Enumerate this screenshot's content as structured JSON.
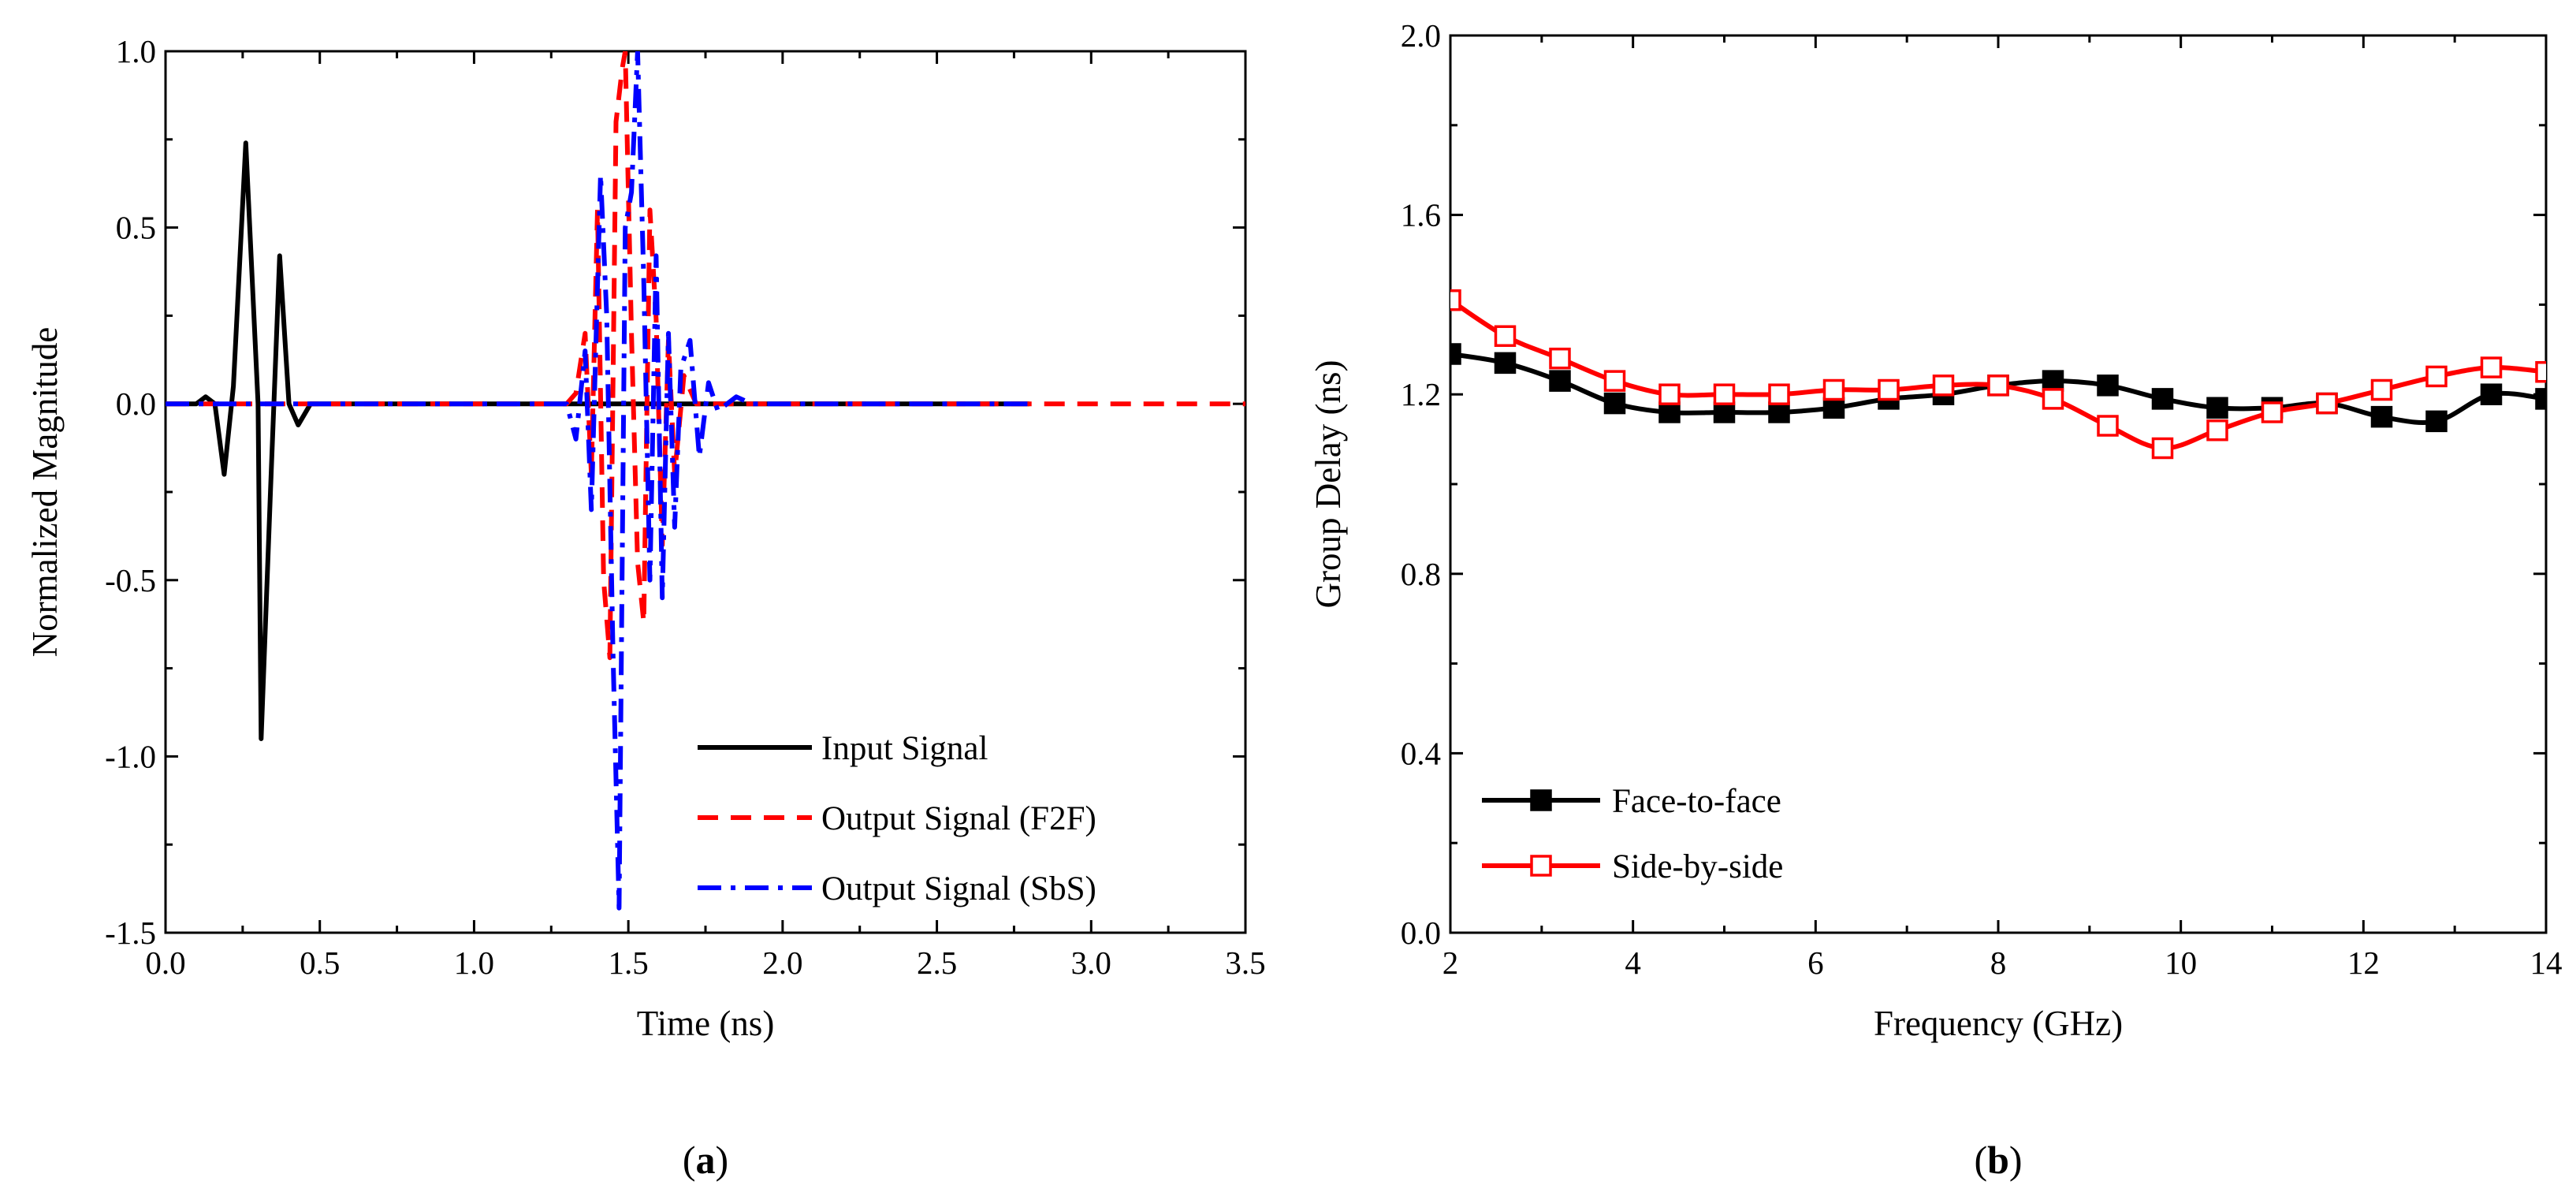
{
  "chart_data": [
    {
      "panel": "(a)",
      "type": "line",
      "xlabel": "Time (ns)",
      "ylabel": "Normalized Magnitude",
      "xlim": [
        0.0,
        3.5
      ],
      "ylim": [
        -1.5,
        1.0
      ],
      "xticks": [
        "0.0",
        "0.5",
        "1.0",
        "1.5",
        "2.0",
        "2.5",
        "3.0",
        "3.5"
      ],
      "yticks": [
        "-1.5",
        "-1.0",
        "-0.5",
        "0.0",
        "0.5",
        "1.0"
      ],
      "legend_position": "lower-right",
      "grid": false,
      "series": [
        {
          "name": "Input Signal",
          "color": "#000000",
          "style": "solid",
          "points": [
            [
              0.0,
              0.0
            ],
            [
              0.1,
              0.0
            ],
            [
              0.13,
              0.02
            ],
            [
              0.16,
              0.0
            ],
            [
              0.19,
              -0.2
            ],
            [
              0.22,
              0.05
            ],
            [
              0.26,
              0.74
            ],
            [
              0.3,
              0.0
            ],
            [
              0.31,
              -0.95
            ],
            [
              0.34,
              -0.25
            ],
            [
              0.37,
              0.42
            ],
            [
              0.4,
              0.0
            ],
            [
              0.43,
              -0.06
            ],
            [
              0.47,
              0.0
            ],
            [
              1.0,
              0.0
            ],
            [
              2.0,
              0.0
            ],
            [
              2.8,
              0.0
            ]
          ]
        },
        {
          "name": "Output Signal (F2F)",
          "color": "#ff0000",
          "style": "dashed",
          "points": [
            [
              0.0,
              0.0
            ],
            [
              1.3,
              0.0
            ],
            [
              1.33,
              0.03
            ],
            [
              1.36,
              0.2
            ],
            [
              1.38,
              -0.2
            ],
            [
              1.4,
              0.55
            ],
            [
              1.42,
              -0.5
            ],
            [
              1.44,
              -0.72
            ],
            [
              1.46,
              0.8
            ],
            [
              1.48,
              0.95
            ],
            [
              1.49,
              1.0
            ],
            [
              1.51,
              0.2
            ],
            [
              1.53,
              -0.45
            ],
            [
              1.55,
              -0.62
            ],
            [
              1.57,
              0.55
            ],
            [
              1.59,
              0.24
            ],
            [
              1.61,
              -0.4
            ],
            [
              1.63,
              0.18
            ],
            [
              1.65,
              -0.2
            ],
            [
              1.68,
              0.08
            ],
            [
              1.72,
              0.0
            ],
            [
              3.5,
              0.0
            ]
          ]
        },
        {
          "name": "Output Signal (SbS)",
          "color": "#0000ff",
          "style": "dashdot",
          "points": [
            [
              0.0,
              0.0
            ],
            [
              1.3,
              0.0
            ],
            [
              1.33,
              -0.1
            ],
            [
              1.36,
              0.15
            ],
            [
              1.38,
              -0.3
            ],
            [
              1.41,
              0.65
            ],
            [
              1.43,
              0.25
            ],
            [
              1.45,
              -0.7
            ],
            [
              1.47,
              -1.43
            ],
            [
              1.49,
              0.5
            ],
            [
              1.51,
              0.6
            ],
            [
              1.53,
              1.0
            ],
            [
              1.55,
              0.35
            ],
            [
              1.57,
              -0.5
            ],
            [
              1.59,
              0.42
            ],
            [
              1.61,
              -0.55
            ],
            [
              1.63,
              0.2
            ],
            [
              1.65,
              -0.35
            ],
            [
              1.67,
              0.1
            ],
            [
              1.7,
              0.18
            ],
            [
              1.73,
              -0.15
            ],
            [
              1.76,
              0.06
            ],
            [
              1.79,
              -0.02
            ],
            [
              1.85,
              0.02
            ],
            [
              1.9,
              0.0
            ],
            [
              2.0,
              0.0
            ],
            [
              2.8,
              0.0
            ]
          ]
        }
      ]
    },
    {
      "panel": "(b)",
      "type": "line",
      "xlabel": "Frequency (GHz)",
      "ylabel": "Group Delay (ns)",
      "xlim": [
        2,
        14
      ],
      "ylim": [
        0.0,
        2.0
      ],
      "xticks": [
        "2",
        "4",
        "6",
        "8",
        "10",
        "12",
        "14"
      ],
      "yticks": [
        "0.0",
        "0.4",
        "0.8",
        "1.2",
        "1.6",
        "2.0"
      ],
      "legend_position": "lower-left",
      "grid": false,
      "series": [
        {
          "name": "Face-to-face",
          "color": "#000000",
          "marker": "filled-square",
          "x": [
            2.0,
            2.6,
            3.2,
            3.8,
            4.4,
            5.0,
            5.6,
            6.2,
            6.8,
            7.4,
            8.0,
            8.6,
            9.2,
            9.8,
            10.4,
            11.0,
            11.6,
            12.2,
            12.8,
            13.4,
            14.0
          ],
          "y": [
            1.29,
            1.27,
            1.23,
            1.18,
            1.16,
            1.16,
            1.16,
            1.17,
            1.19,
            1.2,
            1.22,
            1.23,
            1.22,
            1.19,
            1.17,
            1.17,
            1.18,
            1.15,
            1.14,
            1.2,
            1.19
          ]
        },
        {
          "name": "Side-by-side",
          "color": "#ff0000",
          "marker": "open-square",
          "x": [
            2.0,
            2.6,
            3.2,
            3.8,
            4.4,
            5.0,
            5.6,
            6.2,
            6.8,
            7.4,
            8.0,
            8.6,
            9.2,
            9.8,
            10.4,
            11.0,
            11.6,
            12.2,
            12.8,
            13.4,
            14.0
          ],
          "y": [
            1.41,
            1.33,
            1.28,
            1.23,
            1.2,
            1.2,
            1.2,
            1.21,
            1.21,
            1.22,
            1.22,
            1.19,
            1.13,
            1.08,
            1.12,
            1.16,
            1.18,
            1.21,
            1.24,
            1.26,
            1.25
          ]
        }
      ]
    }
  ]
}
